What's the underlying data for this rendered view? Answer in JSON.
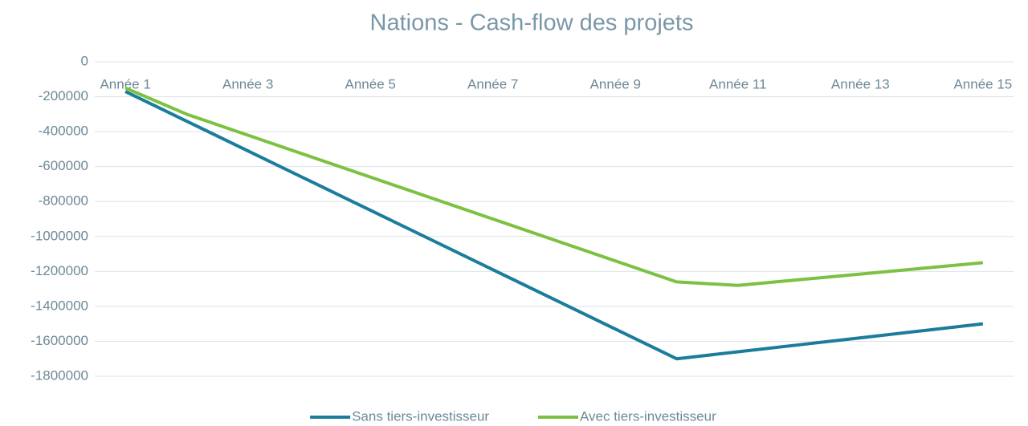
{
  "chart_data": {
    "type": "line",
    "title": "Nations - Cash-flow des projets",
    "categories": [
      "Année 1",
      null,
      "Année 3",
      null,
      "Année 5",
      null,
      "Année 7",
      null,
      "Année 9",
      null,
      "Année 11",
      null,
      "Année 13",
      null,
      "Année 15"
    ],
    "series": [
      {
        "name": "Sans tiers-investisseur",
        "color": "#1b7d9b",
        "values": [
          -170000,
          -340000,
          -510000,
          -680000,
          -850000,
          -1020000,
          -1190000,
          -1360000,
          -1530000,
          -1700000,
          -1660000,
          -1620000,
          -1580000,
          -1540000,
          -1500000
        ]
      },
      {
        "name": "Avec tiers-investisseur",
        "color": "#7cc142",
        "values": [
          -150000,
          -300000,
          -420000,
          -540000,
          -660000,
          -780000,
          -900000,
          -1020000,
          -1140000,
          -1260000,
          -1280000,
          -1247500,
          -1215000,
          -1182500,
          -1150000
        ]
      }
    ],
    "ylim": [
      -1800000,
      0
    ],
    "yticks": [
      0,
      -200000,
      -400000,
      -600000,
      -800000,
      -1000000,
      -1200000,
      -1400000,
      -1600000,
      -1800000
    ],
    "grid": true,
    "legend": "bottom"
  }
}
